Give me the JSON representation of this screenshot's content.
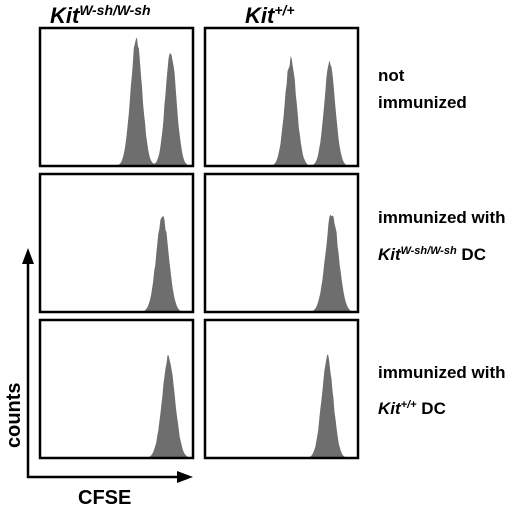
{
  "columns": [
    {
      "base": "Kit",
      "sup": "W-sh/W-sh"
    },
    {
      "base": "Kit",
      "sup": "+/+"
    }
  ],
  "rows": [
    {
      "line1": "not",
      "line2": "immunized"
    },
    {
      "line1": "immunized with",
      "line2_base": "Kit",
      "line2_sup": "W-sh/W-sh",
      "line2_tail": " DC"
    },
    {
      "line1": "immunized with",
      "line2_base": "Kit",
      "line2_sup": "+/+",
      "line2_tail": " DC"
    }
  ],
  "axes": {
    "x_label": "CFSE",
    "y_label": "counts"
  },
  "colors": {
    "histogram_fill": "#6e6e6e",
    "frame": "#000000"
  },
  "chart_data": {
    "type": "area",
    "xlabel": "CFSE",
    "ylabel": "counts",
    "xlim": [
      0,
      1
    ],
    "ylim": [
      0,
      1
    ],
    "panels": [
      {
        "row": 0,
        "col": 0,
        "peaks": [
          {
            "center": 0.63,
            "width": 0.038,
            "height": 0.91
          },
          {
            "center": 0.855,
            "width": 0.036,
            "height": 0.83
          }
        ]
      },
      {
        "row": 0,
        "col": 1,
        "peaks": [
          {
            "center": 0.56,
            "width": 0.038,
            "height": 0.77
          },
          {
            "center": 0.815,
            "width": 0.036,
            "height": 0.75
          }
        ]
      },
      {
        "row": 1,
        "col": 0,
        "peaks": [
          {
            "center": 0.8,
            "width": 0.04,
            "height": 0.7
          }
        ]
      },
      {
        "row": 1,
        "col": 1,
        "peaks": [
          {
            "center": 0.83,
            "width": 0.042,
            "height": 0.72
          }
        ]
      },
      {
        "row": 2,
        "col": 0,
        "peaks": [
          {
            "center": 0.84,
            "width": 0.042,
            "height": 0.73
          }
        ]
      },
      {
        "row": 2,
        "col": 1,
        "peaks": [
          {
            "center": 0.8,
            "width": 0.038,
            "height": 0.73
          }
        ]
      }
    ]
  }
}
